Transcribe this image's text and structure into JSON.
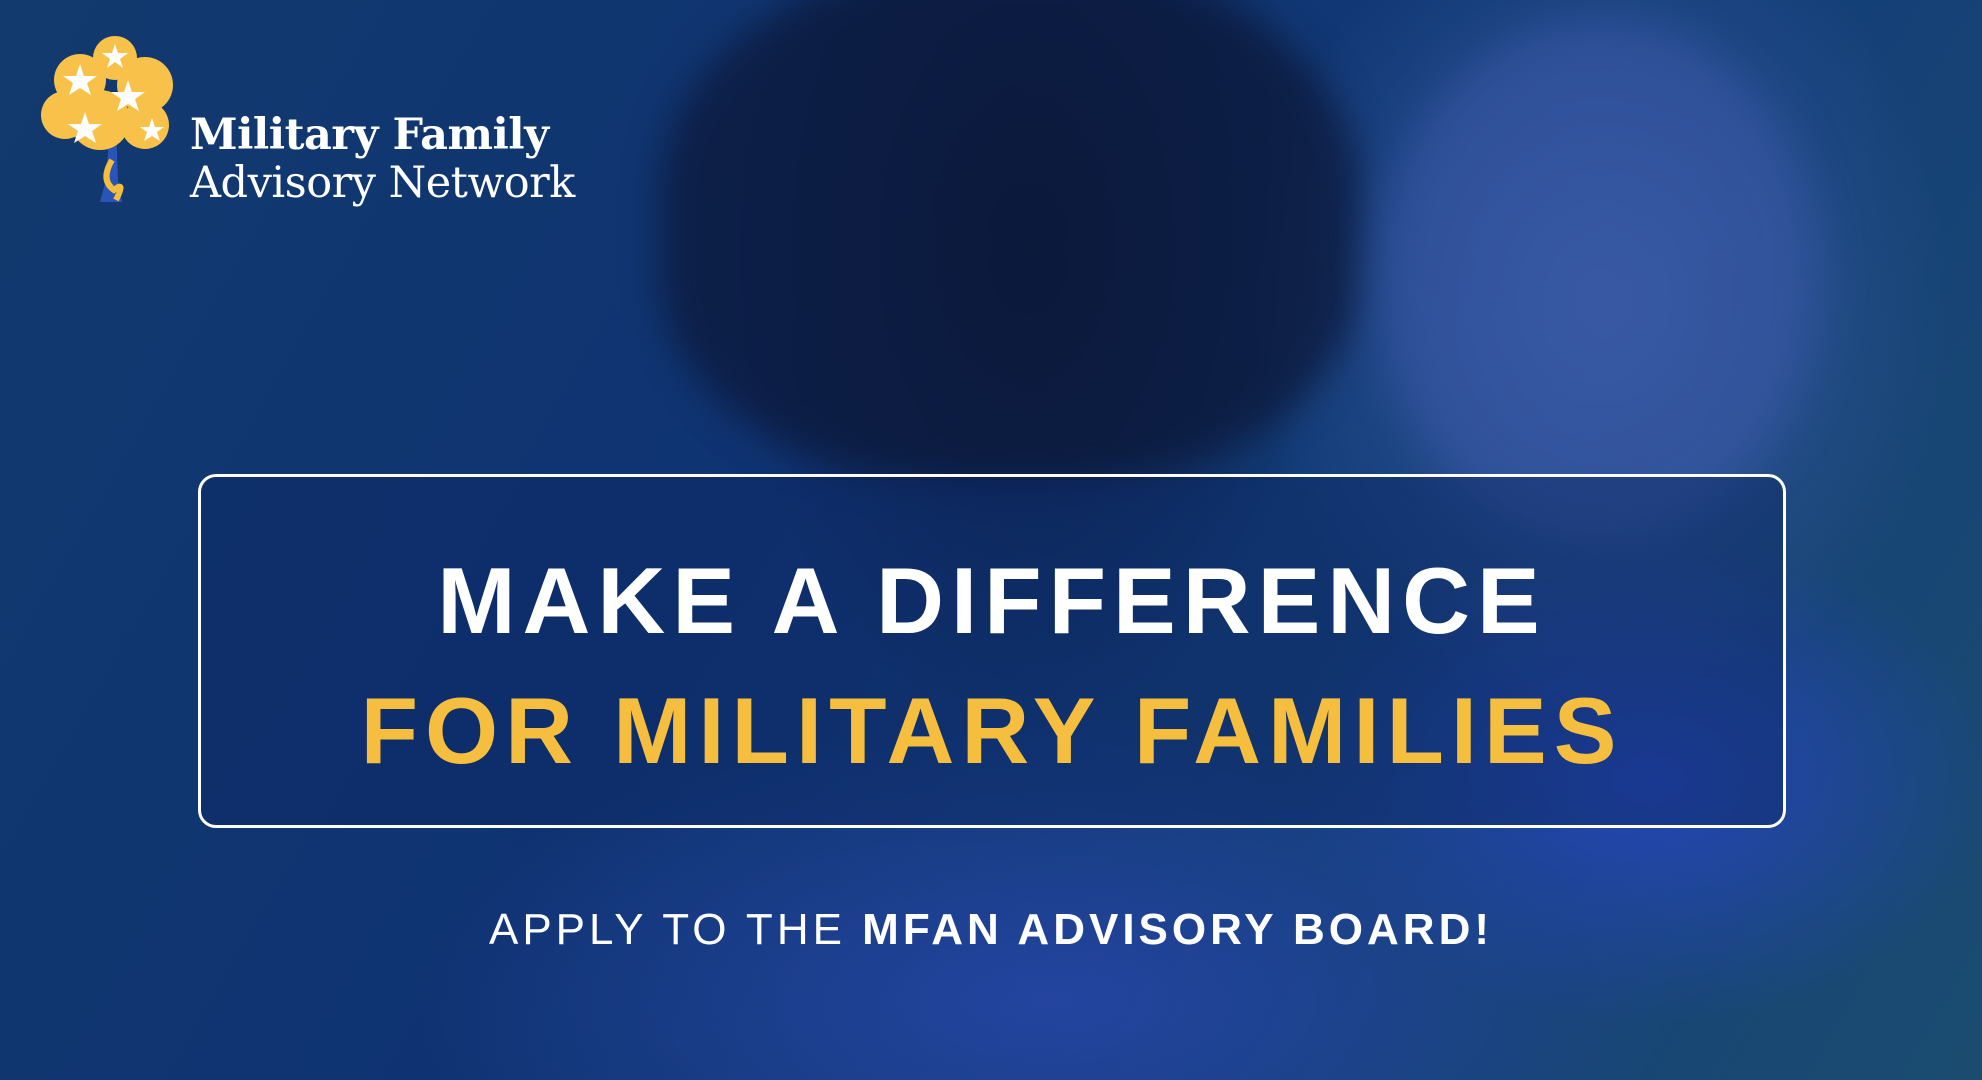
{
  "logo": {
    "line1": "Military Family",
    "line2": "Advisory Network",
    "icon": "star-tree-ribbon-icon"
  },
  "headline": {
    "line1": "MAKE A DIFFERENCE",
    "line2": "FOR MILITARY FAMILIES"
  },
  "cta": {
    "prefix": "APPLY TO THE ",
    "emphasis": "MFAN ADVISORY BOARD!"
  },
  "colors": {
    "accent": "#f6be3e",
    "background": "#0f2f6b",
    "text": "#ffffff"
  }
}
